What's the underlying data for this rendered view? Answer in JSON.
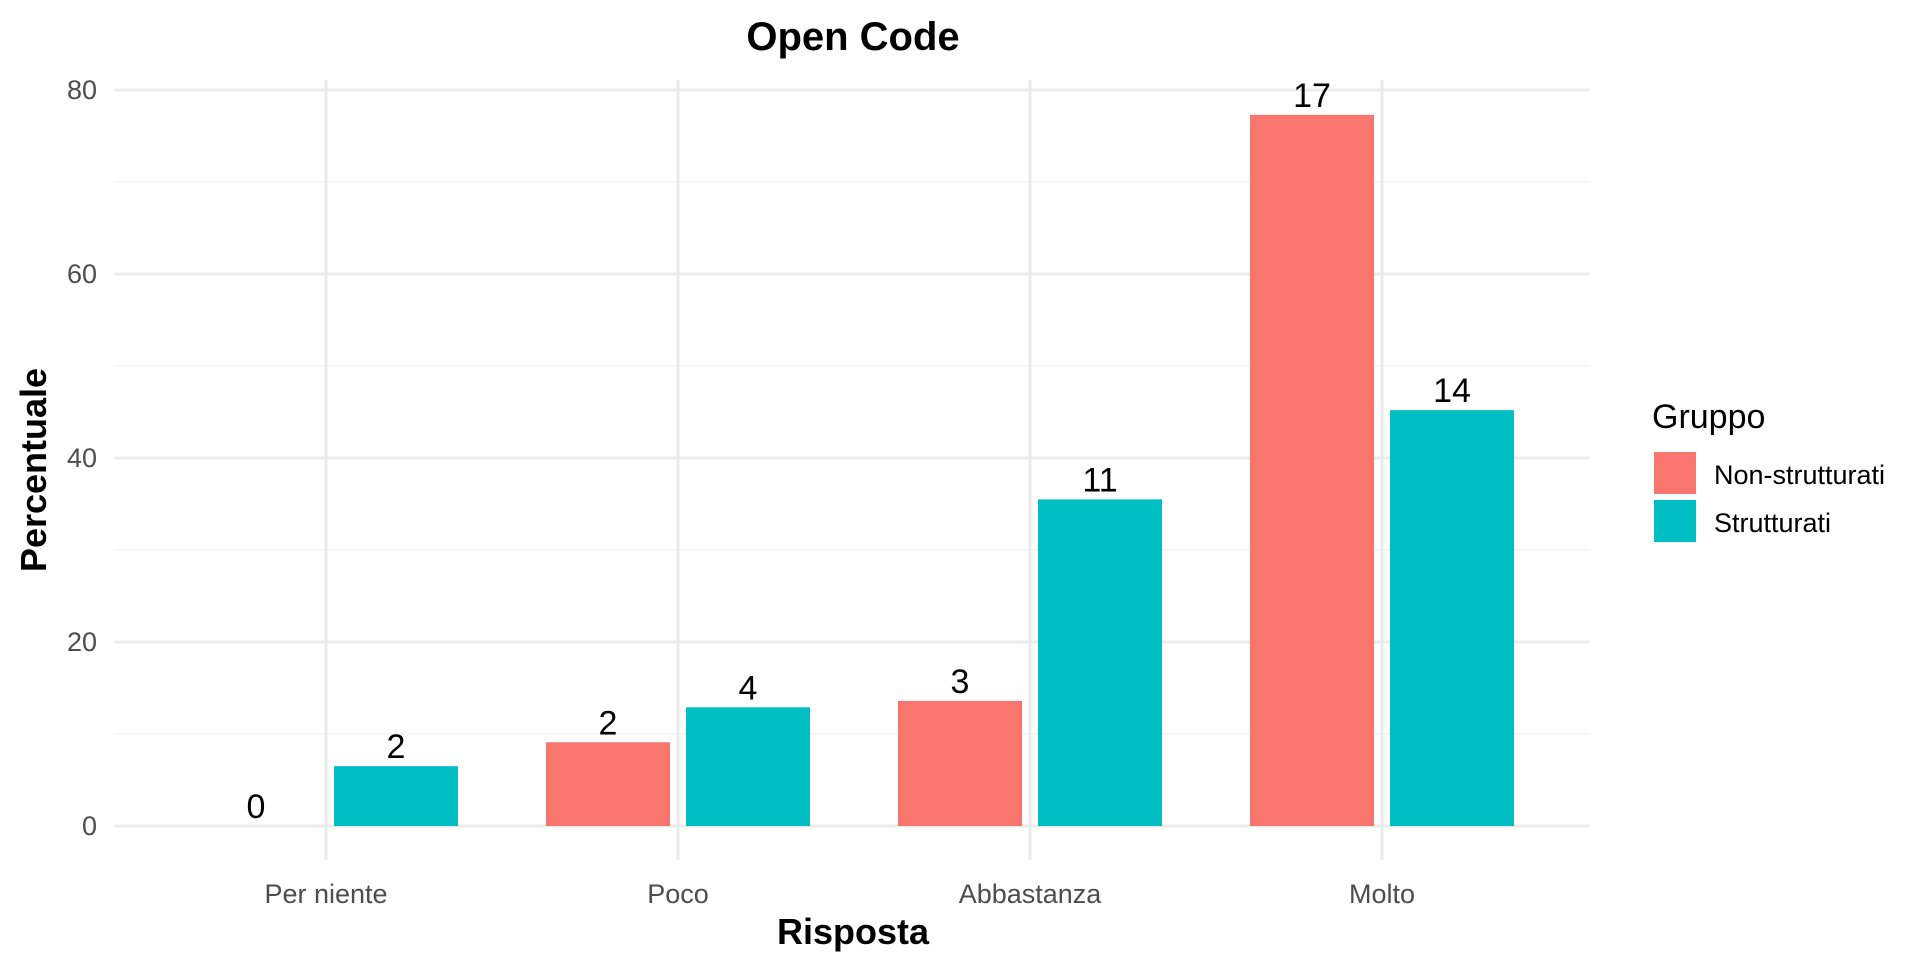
{
  "chart_data": {
    "type": "bar",
    "title": "Open Code",
    "xlabel": "Risposta",
    "ylabel": "Percentuale",
    "categories": [
      "Per niente",
      "Poco",
      "Abbastanza",
      "Molto"
    ],
    "series": [
      {
        "name": "Non-strutturati",
        "color": "#F8766D",
        "values": [
          0,
          9.1,
          13.6,
          77.3
        ],
        "labels": [
          "0",
          "2",
          "3",
          "17"
        ]
      },
      {
        "name": "Strutturati",
        "color": "#00BFC4",
        "values": [
          6.5,
          12.9,
          35.5,
          45.2
        ],
        "labels": [
          "2",
          "4",
          "11",
          "14"
        ]
      }
    ],
    "ylim": [
      0,
      80
    ],
    "yticks": [
      0,
      20,
      40,
      60,
      80
    ],
    "grid": true,
    "legend": {
      "title": "Gruppo",
      "position": "right"
    }
  }
}
